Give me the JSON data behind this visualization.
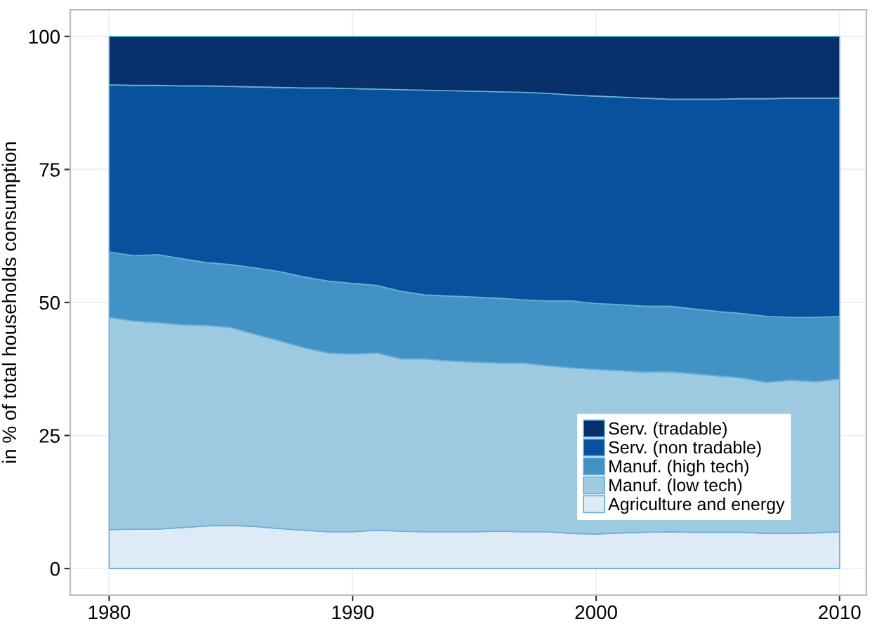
{
  "chart_data": {
    "type": "area",
    "stacked": true,
    "ylabel": "in % of total households consumption",
    "x": [
      1980,
      1981,
      1982,
      1983,
      1984,
      1985,
      1986,
      1987,
      1988,
      1989,
      1990,
      1991,
      1992,
      1993,
      1994,
      1995,
      1996,
      1997,
      1998,
      1999,
      2000,
      2001,
      2002,
      2003,
      2004,
      2005,
      2006,
      2007,
      2008,
      2009,
      2010
    ],
    "series": [
      {
        "name": "Agriculture and energy",
        "color": "#deebf7",
        "values": [
          7.3,
          7.4,
          7.4,
          7.7,
          8.0,
          8.1,
          7.9,
          7.5,
          7.2,
          6.9,
          6.9,
          7.2,
          7.0,
          6.9,
          6.9,
          6.9,
          7.0,
          6.9,
          6.9,
          6.6,
          6.5,
          6.7,
          6.8,
          6.9,
          6.8,
          6.8,
          6.8,
          6.6,
          6.6,
          6.7,
          6.9
        ]
      },
      {
        "name": "Manuf. (low tech)",
        "color": "#9ecae1",
        "values": [
          39.9,
          39.1,
          38.8,
          38.1,
          37.7,
          37.2,
          36.1,
          35.3,
          34.3,
          33.6,
          33.4,
          33.3,
          32.4,
          32.5,
          32.1,
          31.9,
          31.6,
          31.7,
          31.2,
          31.1,
          30.9,
          30.5,
          30.1,
          30.1,
          29.8,
          29.4,
          29.0,
          28.4,
          28.8,
          28.4,
          28.7
        ]
      },
      {
        "name": "Manuf. (high tech)",
        "color": "#4292c6",
        "values": [
          12.3,
          12.3,
          12.8,
          12.4,
          11.8,
          11.8,
          12.5,
          13.0,
          13.3,
          13.5,
          13.3,
          12.7,
          12.7,
          12.0,
          12.2,
          12.2,
          12.2,
          11.9,
          12.2,
          12.6,
          12.4,
          12.4,
          12.4,
          12.3,
          12.2,
          12.1,
          12.1,
          12.4,
          11.8,
          12.1,
          11.8
        ]
      },
      {
        "name": "Serv. (non tradable)",
        "color": "#08519c",
        "values": [
          31.4,
          32.0,
          31.8,
          32.5,
          33.2,
          33.5,
          34.0,
          34.6,
          35.5,
          36.3,
          36.6,
          36.9,
          37.9,
          38.5,
          38.6,
          38.7,
          38.8,
          39.0,
          39.0,
          38.7,
          39.0,
          39.0,
          39.1,
          38.9,
          39.4,
          39.9,
          40.4,
          40.9,
          41.2,
          41.2,
          41.0
        ]
      },
      {
        "name": "Serv. (tradable)",
        "color": "#08306b",
        "values": [
          9.1,
          9.2,
          9.2,
          9.3,
          9.3,
          9.4,
          9.5,
          9.6,
          9.7,
          9.7,
          9.8,
          9.9,
          10.0,
          10.1,
          10.2,
          10.3,
          10.4,
          10.5,
          10.7,
          11.0,
          11.2,
          11.4,
          11.6,
          11.8,
          11.8,
          11.8,
          11.7,
          11.7,
          11.6,
          11.6,
          11.6
        ]
      }
    ],
    "xlim": [
      1978.4,
      2011.1
    ],
    "xticks": [
      1980,
      1990,
      2000,
      2010
    ],
    "ylim": [
      -5,
      105
    ],
    "yticks": [
      0,
      25,
      50,
      75,
      100
    ],
    "grid": true,
    "legend": "bottom right"
  }
}
